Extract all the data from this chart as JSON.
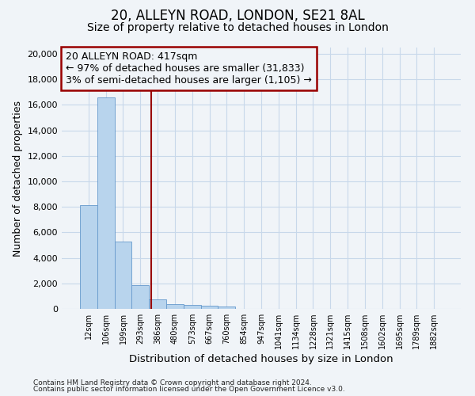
{
  "title": "20, ALLEYN ROAD, LONDON, SE21 8AL",
  "subtitle": "Size of property relative to detached houses in London",
  "xlabel": "Distribution of detached houses by size in London",
  "ylabel": "Number of detached properties",
  "categories": [
    "12sqm",
    "106sqm",
    "199sqm",
    "293sqm",
    "386sqm",
    "480sqm",
    "573sqm",
    "667sqm",
    "760sqm",
    "854sqm",
    "947sqm",
    "1041sqm",
    "1134sqm",
    "1228sqm",
    "1321sqm",
    "1415sqm",
    "1508sqm",
    "1602sqm",
    "1695sqm",
    "1789sqm",
    "1882sqm"
  ],
  "values": [
    8150,
    16600,
    5300,
    1850,
    750,
    350,
    280,
    230,
    200,
    0,
    0,
    0,
    0,
    0,
    0,
    0,
    0,
    0,
    0,
    0,
    0
  ],
  "bar_color": "#b8d4ed",
  "bar_edge_color": "#6699cc",
  "grid_color": "#c8d8ea",
  "background_color": "#f0f4f8",
  "plot_bg_color": "#f0f4f8",
  "vline_x": 3.62,
  "vline_color": "#990000",
  "annotation_line1": "20 ALLEYN ROAD: 417sqm",
  "annotation_line2": "← 97% of detached houses are smaller (31,833)",
  "annotation_line3": "3% of semi-detached houses are larger (1,105) →",
  "annotation_box_color": "#990000",
  "annotation_fontsize": 9,
  "ylim": [
    0,
    20500
  ],
  "yticks": [
    0,
    2000,
    4000,
    6000,
    8000,
    10000,
    12000,
    14000,
    16000,
    18000,
    20000
  ],
  "footer_line1": "Contains HM Land Registry data © Crown copyright and database right 2024.",
  "footer_line2": "Contains public sector information licensed under the Open Government Licence v3.0.",
  "title_fontsize": 12,
  "subtitle_fontsize": 10
}
